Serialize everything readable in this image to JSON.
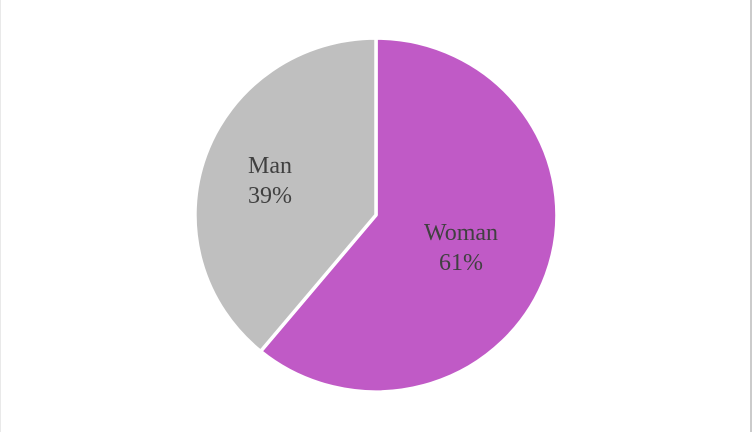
{
  "window": {
    "background": "#FFFFFF",
    "left_edge_color": "#E9E9E9",
    "right_edge_color": "#CBCBCB"
  },
  "chart_data": {
    "type": "pie",
    "title": "",
    "legend_position": "none",
    "total": 100,
    "categories": [
      "Woman",
      "Man"
    ],
    "values": [
      61,
      39
    ],
    "slices": [
      {
        "label": "Woman",
        "value": 61,
        "percent_text": "61%",
        "color": "#C05AC6",
        "label_radius_frac": 0.5
      },
      {
        "label": "Man",
        "value": 39,
        "percent_text": "39%",
        "color": "#BFBFBF",
        "label_radius_frac": 0.62
      }
    ],
    "start_angle_deg": 0,
    "direction": "clockwise",
    "slice_border_color": "#FFFFFF",
    "slice_border_width": 3.5,
    "label_color": "#404040",
    "label_layout": "inside-two-line"
  }
}
